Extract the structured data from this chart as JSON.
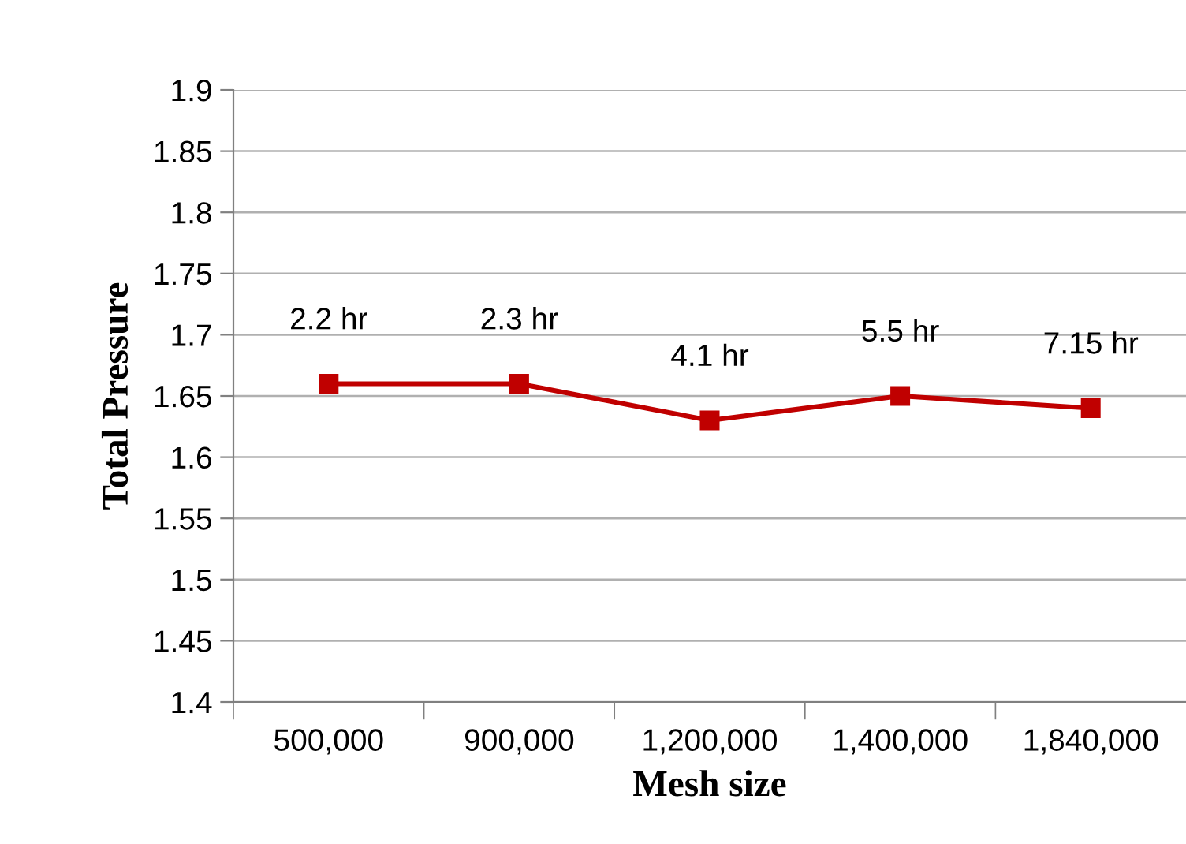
{
  "chart_data": {
    "type": "line",
    "xlabel": "Mesh size",
    "ylabel": "Total Pressure",
    "categories": [
      "500,000",
      "900,000",
      "1,200,000",
      "1,400,000",
      "1,840,000"
    ],
    "series": [
      {
        "color": "#c00000",
        "values": [
          1.66,
          1.66,
          1.63,
          1.65,
          1.64
        ]
      }
    ],
    "ylim": [
      1.4,
      1.9
    ],
    "yticks": [
      1.4,
      1.45,
      1.5,
      1.55,
      1.6,
      1.65,
      1.7,
      1.75,
      1.8,
      1.85,
      1.9
    ],
    "grid": "y",
    "marker": "square",
    "line_style": "solid",
    "legend": false,
    "annotations": [
      {
        "text": "2.2 hr",
        "x": "500,000",
        "y": 1.66
      },
      {
        "text": "2.3 hr",
        "x": "900,000",
        "y": 1.66
      },
      {
        "text": "4.1 hr",
        "x": "1,200,000",
        "y": 1.63
      },
      {
        "text": "5.5 hr",
        "x": "1,400,000",
        "y": 1.65
      },
      {
        "text": "7.15 hr",
        "x": "1,840,000",
        "y": 1.64
      }
    ]
  }
}
